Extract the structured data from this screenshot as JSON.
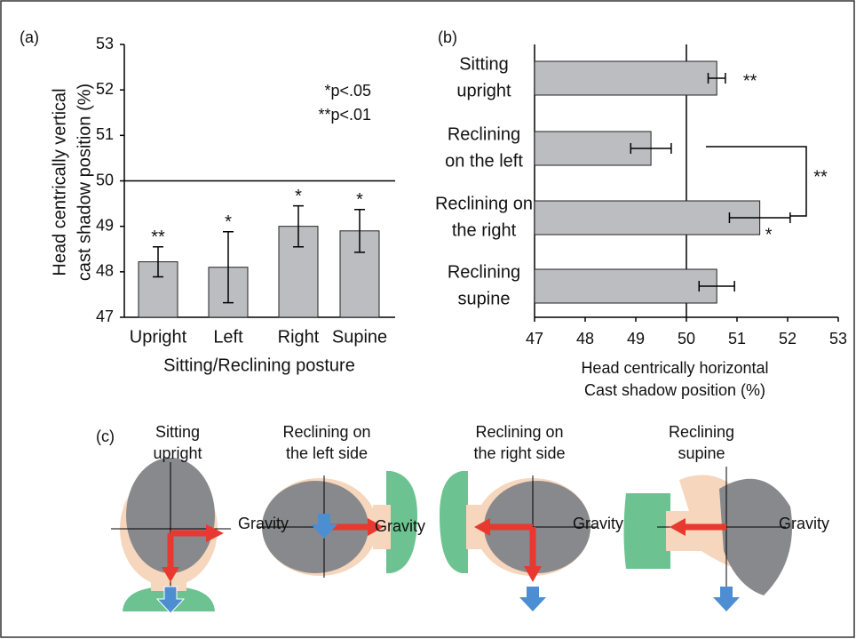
{
  "chart_data": [
    {
      "type": "bar",
      "panel_label": "(a)",
      "y_label": [
        "Head centrically vertical",
        "cast shadow position (%)"
      ],
      "x_label": "Sitting/Reclining posture",
      "categories": [
        "Upright",
        "Left",
        "Right",
        "Supine"
      ],
      "values": [
        48.22,
        48.1,
        49.0,
        48.9
      ],
      "errors": [
        0.33,
        0.78,
        0.45,
        0.47
      ],
      "significance": [
        "**",
        "*",
        "*",
        "*"
      ],
      "annotations": [
        "*p<.05",
        "**p<.01"
      ],
      "reference_line": 50,
      "color": "#bcbdc0",
      "ylim": [
        47,
        53
      ],
      "yticks": [
        47,
        48,
        49,
        50,
        51,
        52,
        53
      ]
    },
    {
      "type": "barh",
      "panel_label": "(b)",
      "x_label": [
        "Head centrically horizontal",
        "Cast shadow position (%)"
      ],
      "categories": [
        [
          "Sitting",
          "upright"
        ],
        [
          "Reclining",
          "on the left"
        ],
        [
          "Reclining on",
          "the right"
        ],
        [
          "Reclining",
          "supine"
        ]
      ],
      "values": [
        50.6,
        49.3,
        51.45,
        50.6
      ],
      "errors": [
        0.17,
        0.4,
        0.6,
        0.35
      ],
      "significance": [
        "**",
        null,
        "*",
        null
      ],
      "bracket_label": "**",
      "reference_line": 50,
      "color": "#bcbdc0",
      "xlim": [
        47,
        53
      ],
      "xticks": [
        47,
        48,
        49,
        50,
        51,
        52,
        53
      ]
    }
  ],
  "diagram": {
    "label": "(c)",
    "panels": [
      {
        "lines": [
          "Sitting",
          "upright"
        ],
        "gravity": "Gravity"
      },
      {
        "lines": [
          "Reclining on",
          "the left side"
        ],
        "gravity": "Gravity"
      },
      {
        "lines": [
          "Reclining on",
          "the right side"
        ],
        "gravity": "Gravity"
      },
      {
        "lines": [
          "Reclining",
          "supine"
        ],
        "gravity": "Gravity"
      }
    ]
  }
}
